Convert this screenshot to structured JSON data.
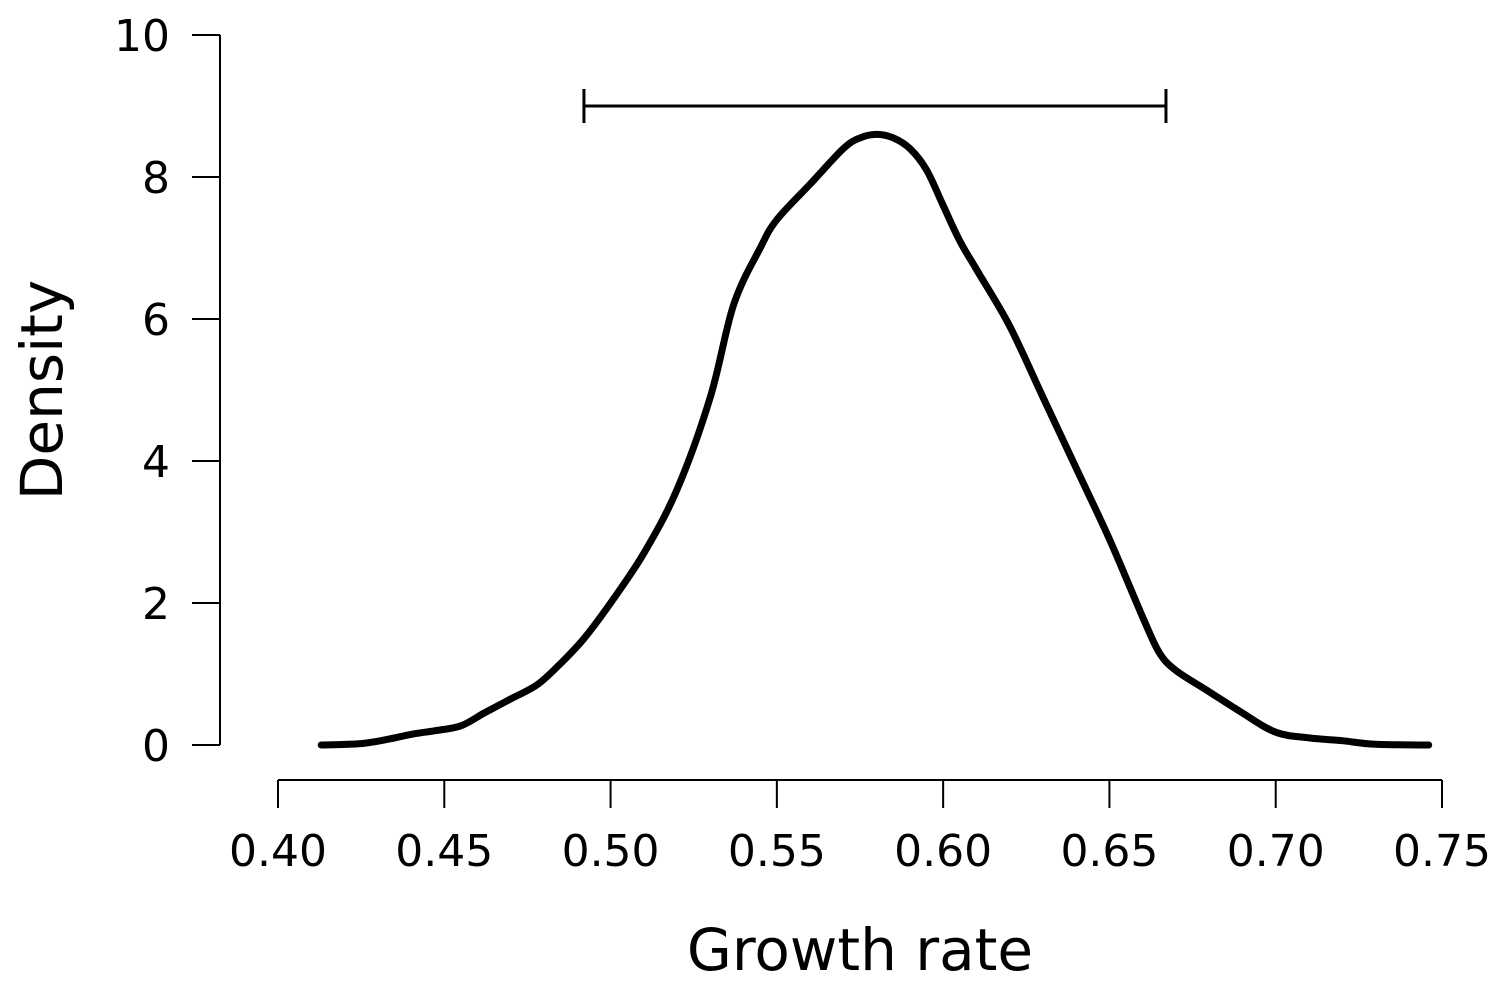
{
  "chart_data": {
    "type": "line",
    "title": "",
    "xlabel": "Growth rate",
    "ylabel": "Density",
    "xlim": [
      0.4,
      0.75
    ],
    "ylim": [
      0,
      10
    ],
    "xticks": [
      0.4,
      0.45,
      0.5,
      0.55,
      0.6,
      0.65,
      0.7,
      0.75
    ],
    "xtick_labels": [
      "0.40",
      "0.45",
      "0.50",
      "0.55",
      "0.60",
      "0.65",
      "0.70",
      "0.75"
    ],
    "yticks": [
      0,
      2,
      4,
      6,
      8,
      10
    ],
    "ytick_labels": [
      "0",
      "2",
      "4",
      "6",
      "8",
      "10"
    ],
    "grid": false,
    "series": [
      {
        "color": "#000000",
        "x": [
          0.413,
          0.425,
          0.433,
          0.44,
          0.447,
          0.455,
          0.462,
          0.47,
          0.478,
          0.485,
          0.492,
          0.5,
          0.51,
          0.52,
          0.53,
          0.537,
          0.545,
          0.55,
          0.56,
          0.57,
          0.575,
          0.58,
          0.585,
          0.59,
          0.595,
          0.6,
          0.605,
          0.61,
          0.62,
          0.63,
          0.64,
          0.65,
          0.66,
          0.665,
          0.67,
          0.68,
          0.69,
          0.7,
          0.71,
          0.72,
          0.73,
          0.746
        ],
        "y": [
          0.0,
          0.02,
          0.08,
          0.15,
          0.2,
          0.27,
          0.45,
          0.65,
          0.85,
          1.15,
          1.5,
          2.0,
          2.7,
          3.6,
          4.9,
          6.2,
          7.0,
          7.4,
          7.9,
          8.4,
          8.55,
          8.6,
          8.55,
          8.4,
          8.1,
          7.6,
          7.1,
          6.7,
          5.9,
          4.9,
          3.9,
          2.9,
          1.8,
          1.3,
          1.05,
          0.75,
          0.45,
          0.18,
          0.1,
          0.06,
          0.01,
          0.0
        ]
      }
    ],
    "interval": {
      "low": 0.492,
      "high": 0.667,
      "y": 9.0
    }
  }
}
